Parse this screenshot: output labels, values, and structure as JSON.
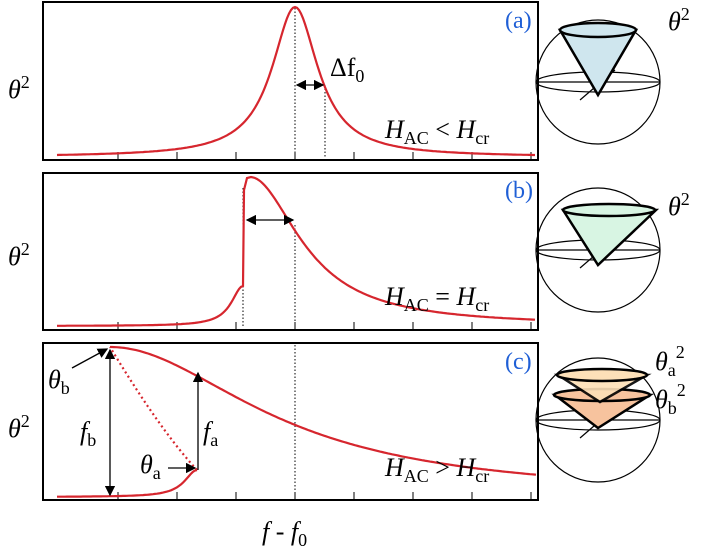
{
  "panels": [
    {
      "tag": "(a)",
      "y_label": [
        "θ",
        "2"
      ],
      "condition": [
        "H",
        "AC",
        " < ",
        "H",
        "cr"
      ],
      "width_label": [
        "Δf",
        "0"
      ],
      "sphere_labels": [
        [
          "θ",
          "2"
        ]
      ]
    },
    {
      "tag": "(b)",
      "y_label": [
        "θ",
        "2"
      ],
      "condition": [
        "H",
        "AC",
        " = ",
        "H",
        "cr"
      ],
      "sphere_labels": [
        [
          "θ",
          "2"
        ]
      ]
    },
    {
      "tag": "(c)",
      "y_label": [
        "θ",
        "2"
      ],
      "condition": [
        "H",
        "AC",
        " > ",
        "H",
        "cr"
      ],
      "sphere_labels": [
        [
          "θ",
          "a",
          "2"
        ],
        [
          "θ",
          "b",
          "2"
        ]
      ],
      "annotations": {
        "theta_b": [
          "θ",
          "b"
        ],
        "f_b": [
          "f",
          "b"
        ],
        "theta_a": [
          "θ",
          "a"
        ],
        "f_a": [
          "f",
          "a"
        ]
      }
    }
  ],
  "x_label": [
    "f",
    " - ",
    "f",
    "0"
  ]
}
